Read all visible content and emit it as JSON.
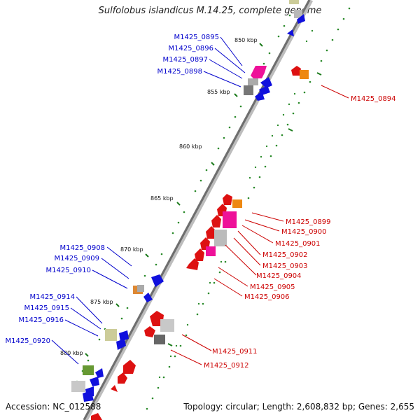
{
  "title": "Sulfolobus islandicus M.14.25, complete genome",
  "footer": {
    "accession": "Accession: NC_012588",
    "summary": "Topology: circular; Length: 2,608,832 bp; Genes: 2,655"
  },
  "colors": {
    "backbone": "#888888",
    "blue_label": "#0000cc",
    "red_label": "#cc0000",
    "tick": "#1a7a1a"
  },
  "ruler": [
    "850 kbp",
    "855 kbp",
    "860 kbp",
    "865 kbp",
    "870 kbp",
    "875 kbp",
    "880 kbp"
  ],
  "left_labels": [
    "M1425_0895",
    "M1425_0896",
    "M1425_0897",
    "M1425_0898",
    "M1425_0908",
    "M1425_0909",
    "M1425_0910",
    "M1425_0914",
    "M1425_0915",
    "M1425_0916",
    "M1425_0920"
  ],
  "right_labels": [
    "M1425_0894",
    "M1425_0899",
    "M1425_0900",
    "M1425_0901",
    "M1425_0902",
    "M1425_0903",
    "M1425_0904",
    "M1425_0905",
    "M1425_0906",
    "M1425_0911",
    "M1425_0912"
  ]
}
